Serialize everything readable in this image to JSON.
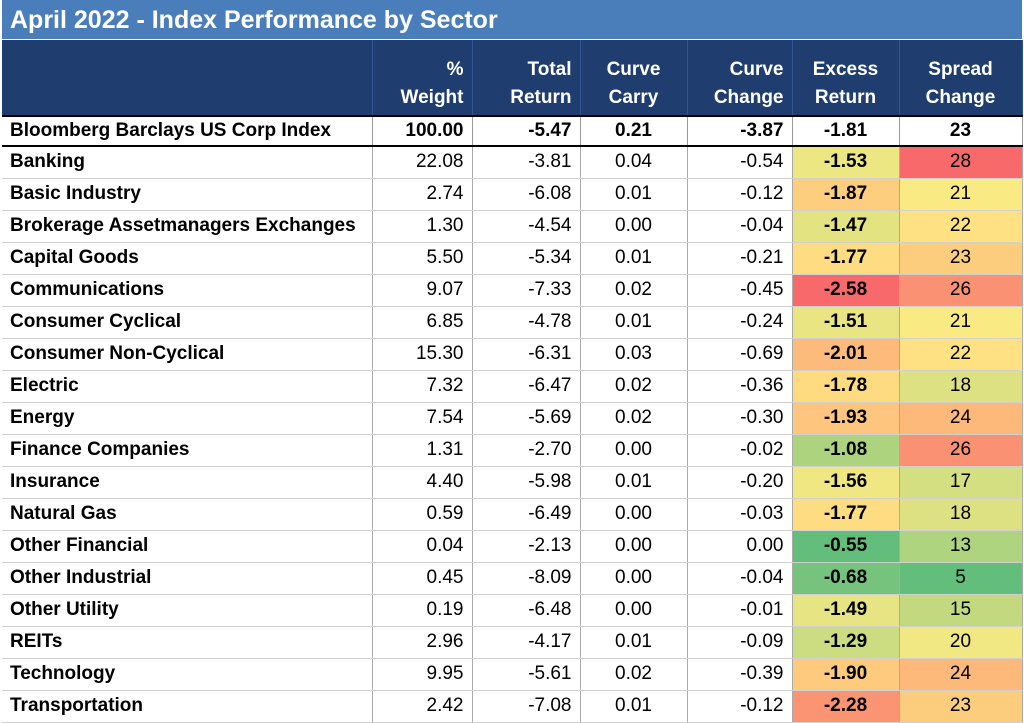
{
  "title": "April 2022 - Index Performance by Sector",
  "table": {
    "header": [
      "",
      "% Weight",
      "Total\nReturn",
      "Curve\nCarry",
      "Curve\nChange",
      "Excess\nReturn",
      "Spread\nChange"
    ],
    "index_row": [
      "Bloomberg Barclays US Corp Index",
      "100.00",
      "-5.47",
      "0.21",
      "-3.87",
      "-1.81",
      "23"
    ],
    "rows": [
      [
        "Banking",
        "22.08",
        "-3.81",
        "0.04",
        "-0.54",
        "-1.53",
        "28"
      ],
      [
        "Basic Industry",
        "2.74",
        "-6.08",
        "0.01",
        "-0.12",
        "-1.87",
        "21"
      ],
      [
        "Brokerage Assetmanagers Exchanges",
        "1.30",
        "-4.54",
        "0.00",
        "-0.04",
        "-1.47",
        "22"
      ],
      [
        "Capital Goods",
        "5.50",
        "-5.34",
        "0.01",
        "-0.21",
        "-1.77",
        "23"
      ],
      [
        "Communications",
        "9.07",
        "-7.33",
        "0.02",
        "-0.45",
        "-2.58",
        "26"
      ],
      [
        "Consumer Cyclical",
        "6.85",
        "-4.78",
        "0.01",
        "-0.24",
        "-1.51",
        "21"
      ],
      [
        "Consumer Non-Cyclical",
        "15.30",
        "-6.31",
        "0.03",
        "-0.69",
        "-2.01",
        "22"
      ],
      [
        "Electric",
        "7.32",
        "-6.47",
        "0.02",
        "-0.36",
        "-1.78",
        "18"
      ],
      [
        "Energy",
        "7.54",
        "-5.69",
        "0.02",
        "-0.30",
        "-1.93",
        "24"
      ],
      [
        "Finance Companies",
        "1.31",
        "-2.70",
        "0.00",
        "-0.02",
        "-1.08",
        "26"
      ],
      [
        "Insurance",
        "4.40",
        "-5.98",
        "0.01",
        "-0.20",
        "-1.56",
        "17"
      ],
      [
        "Natural Gas",
        "0.59",
        "-6.49",
        "0.00",
        "-0.03",
        "-1.77",
        "18"
      ],
      [
        "Other Financial",
        "0.04",
        "-2.13",
        "0.00",
        "0.00",
        "-0.55",
        "13"
      ],
      [
        "Other Industrial",
        "0.45",
        "-8.09",
        "0.00",
        "-0.04",
        "-0.68",
        "5"
      ],
      [
        "Other Utility",
        "0.19",
        "-6.48",
        "0.00",
        "-0.01",
        "-1.49",
        "15"
      ],
      [
        "REITs",
        "2.96",
        "-4.17",
        "0.01",
        "-0.09",
        "-1.29",
        "20"
      ],
      [
        "Technology",
        "9.95",
        "-5.61",
        "0.02",
        "-0.39",
        "-1.90",
        "24"
      ],
      [
        "Transportation",
        "2.42",
        "-7.08",
        "0.01",
        "-0.12",
        "-2.28",
        "23"
      ]
    ],
    "heatmap": {
      "low_color": "#f8696b",
      "mid_color": "#ffeb84",
      "high_color": "#63be7b"
    }
  }
}
